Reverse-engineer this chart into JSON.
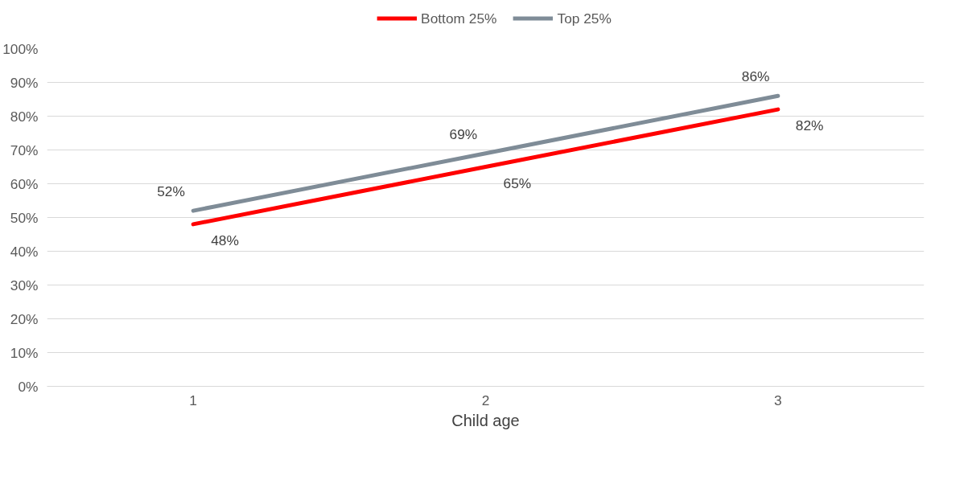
{
  "chart_data": {
    "type": "line",
    "xlabel": "Child age",
    "categories": [
      "1",
      "2",
      "3"
    ],
    "series": [
      {
        "name": "Bottom 25%",
        "color": "#ff0000",
        "values": [
          48,
          65,
          82
        ],
        "value_labels": [
          "48%",
          "65%",
          "82%"
        ]
      },
      {
        "name": "Top 25%",
        "color": "#7f8c97",
        "values": [
          52,
          69,
          86
        ],
        "value_labels": [
          "52%",
          "69%",
          "86%"
        ]
      }
    ],
    "ylim": [
      0,
      100
    ],
    "yticks": [
      {
        "value": 0,
        "label": "0%"
      },
      {
        "value": 10,
        "label": "10%"
      },
      {
        "value": 20,
        "label": "20%"
      },
      {
        "value": 30,
        "label": "30%"
      },
      {
        "value": 40,
        "label": "40%"
      },
      {
        "value": 50,
        "label": "50%"
      },
      {
        "value": 60,
        "label": "60%"
      },
      {
        "value": 70,
        "label": "70%"
      },
      {
        "value": 80,
        "label": "80%"
      },
      {
        "value": 90,
        "label": "90%"
      },
      {
        "value": 100,
        "label": "100%"
      }
    ],
    "grid": "y",
    "legend": "top",
    "marker": "none",
    "line_style": "solid"
  }
}
